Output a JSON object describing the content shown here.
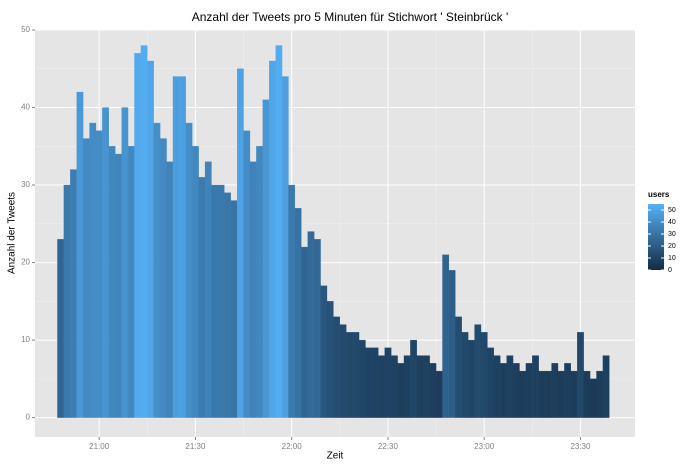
{
  "chart_data": {
    "type": "bar",
    "title": "Anzahl der Tweets pro 5 Minuten für Stichwort ' Steinbrück '",
    "x_label": "Zeit",
    "y_label": "Anzahl der Tweets",
    "x": [
      1248,
      1250,
      1252,
      1254,
      1256,
      1258,
      1260,
      1262,
      1264,
      1266,
      1268,
      1270,
      1272,
      1274,
      1276,
      1278,
      1280,
      1282,
      1284,
      1286,
      1288,
      1290,
      1292,
      1294,
      1296,
      1298,
      1300,
      1302,
      1304,
      1306,
      1308,
      1310,
      1312,
      1314,
      1316,
      1318,
      1320,
      1322,
      1324,
      1326,
      1328,
      1330,
      1332,
      1334,
      1336,
      1338,
      1340,
      1342,
      1344,
      1346,
      1348,
      1350,
      1352,
      1354,
      1356,
      1358,
      1360,
      1362,
      1364,
      1366,
      1368,
      1370,
      1372,
      1374,
      1376,
      1378,
      1380,
      1382,
      1384,
      1386,
      1388,
      1390,
      1392,
      1394,
      1396,
      1398,
      1400,
      1402,
      1404,
      1406,
      1408,
      1410,
      1412,
      1414,
      1416,
      1418
    ],
    "bar_width": 2,
    "values": [
      23,
      30,
      32,
      42,
      36,
      38,
      37,
      40,
      35,
      34,
      40,
      35,
      47,
      48,
      46,
      38,
      36,
      33,
      44,
      44,
      38,
      35,
      31,
      33,
      30,
      30,
      29,
      28,
      45,
      37,
      33,
      35,
      41,
      46,
      48,
      44,
      30,
      27,
      22,
      24,
      23,
      17,
      15,
      13,
      12,
      11,
      11,
      10,
      9,
      9,
      8,
      9,
      8,
      7,
      8,
      10,
      8,
      8,
      7,
      6,
      21,
      19,
      13,
      11,
      10,
      12,
      11,
      9,
      8,
      7,
      8,
      7,
      6,
      7,
      8,
      6,
      6,
      7,
      6,
      7,
      6,
      11,
      6,
      5,
      6,
      8
    ],
    "color_label": "users",
    "color_values": [
      24,
      32,
      34,
      45,
      39,
      40,
      40,
      43,
      38,
      37,
      43,
      38,
      52,
      53,
      50,
      41,
      39,
      36,
      47,
      48,
      41,
      38,
      33,
      36,
      32,
      32,
      31,
      30,
      49,
      40,
      36,
      38,
      44,
      50,
      53,
      48,
      32,
      29,
      24,
      26,
      25,
      18,
      16,
      14,
      13,
      12,
      12,
      11,
      10,
      10,
      9,
      10,
      9,
      8,
      9,
      11,
      9,
      9,
      8,
      7,
      23,
      21,
      14,
      12,
      11,
      13,
      12,
      10,
      9,
      8,
      9,
      8,
      7,
      8,
      9,
      7,
      7,
      8,
      7,
      8,
      7,
      12,
      7,
      6,
      7,
      9
    ],
    "color_scale": {
      "low": "#132B43",
      "high": "#56B1F7",
      "limits": [
        0,
        55
      ],
      "breaks": [
        0,
        10,
        20,
        30,
        40,
        50
      ]
    },
    "xlim": [
      1240,
      1427
    ],
    "xticks": [
      {
        "value": 1260,
        "label": "21:00"
      },
      {
        "value": 1290,
        "label": "21:30"
      },
      {
        "value": 1320,
        "label": "22:00"
      },
      {
        "value": 1350,
        "label": "22:30"
      },
      {
        "value": 1380,
        "label": "23:00"
      },
      {
        "value": 1410,
        "label": "23:30"
      }
    ],
    "ylim": [
      -2.5,
      50
    ],
    "yticks": [
      0,
      10,
      20,
      30,
      40,
      50
    ],
    "grid": true
  }
}
